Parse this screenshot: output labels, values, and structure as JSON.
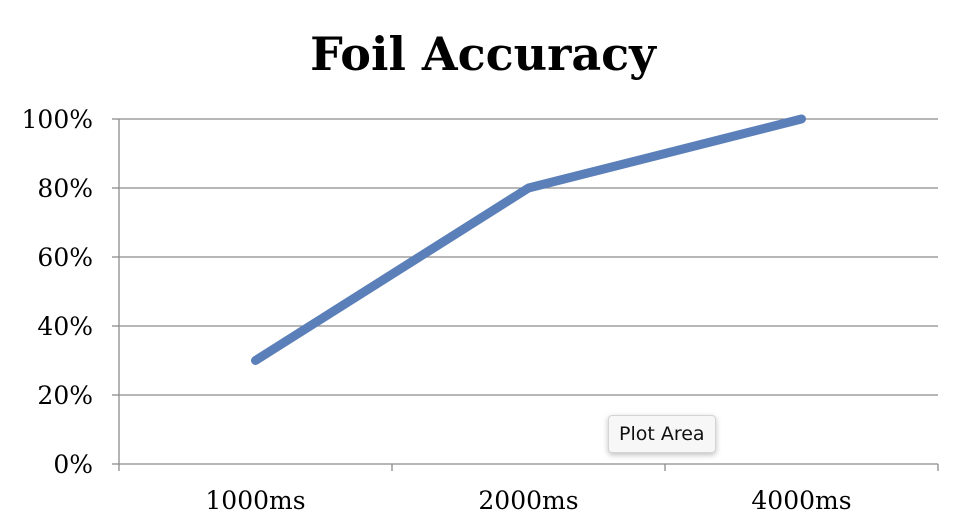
{
  "chart_data": {
    "type": "line",
    "title": "Foil Accuracy",
    "categories": [
      "1000ms",
      "2000ms",
      "4000ms"
    ],
    "series": [
      {
        "values": [
          0.3,
          0.8,
          1.0
        ]
      }
    ],
    "y_tick_labels": [
      "0%",
      "20%",
      "40%",
      "60%",
      "80%",
      "100%"
    ],
    "y_ticks": [
      0,
      0.2,
      0.4,
      0.6,
      0.8,
      1.0
    ],
    "ylim": [
      0,
      1
    ],
    "xlabel": "",
    "ylabel": "",
    "grid": true,
    "legend": "none",
    "line_color": "#5b7fb8",
    "grid_color": "#8c8c8c"
  },
  "tooltip": {
    "label": "Plot Area"
  }
}
